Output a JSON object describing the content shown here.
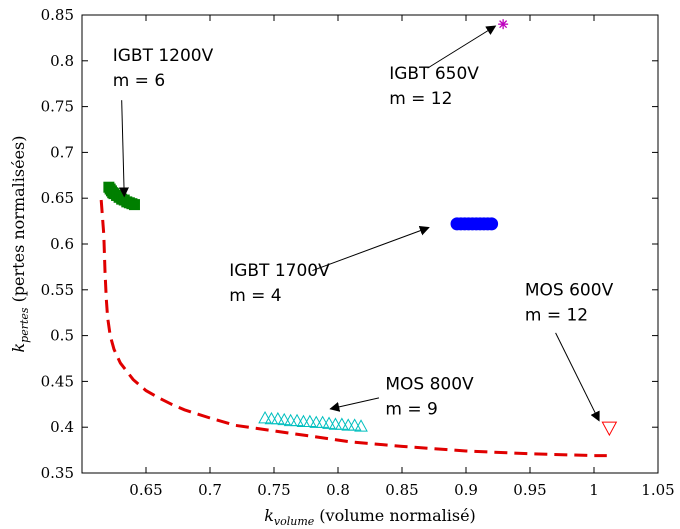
{
  "chart_data": {
    "type": "scatter",
    "title": "",
    "xlim": [
      0.6,
      1.05
    ],
    "ylim": [
      0.35,
      0.85
    ],
    "xticks": [
      0.65,
      0.7,
      0.75,
      0.8,
      0.85,
      0.9,
      0.95,
      1.0,
      1.05
    ],
    "yticks": [
      0.35,
      0.4,
      0.45,
      0.5,
      0.55,
      0.6,
      0.65,
      0.7,
      0.75,
      0.8,
      0.85
    ],
    "xtick_labels": [
      "0.65",
      "0.7",
      "0.75",
      "0.8",
      "0.85",
      "0.9",
      "0.95",
      "1",
      "1.05"
    ],
    "ytick_labels": [
      "0.35",
      "0.4",
      "0.45",
      "0.5",
      "0.55",
      "0.6",
      "0.65",
      "0.7",
      "0.75",
      "0.8",
      "0.85"
    ],
    "xlabel": {
      "symbol": "k",
      "subscript": "volume",
      "text": "(volume normalisé)"
    },
    "ylabel": {
      "symbol": "k",
      "subscript": "pertes",
      "text": "(pertes normalisées)"
    },
    "grid": false,
    "legend": "none",
    "series": [
      {
        "label_lines": [
          "IGBT 1200V",
          "m = 6"
        ],
        "marker": "square",
        "color": "#007f00",
        "x": [
          0.621,
          0.622,
          0.623,
          0.624,
          0.625,
          0.627,
          0.629,
          0.631,
          0.633,
          0.635,
          0.637,
          0.639,
          0.641
        ],
        "y": [
          0.662,
          0.66,
          0.658,
          0.656,
          0.655,
          0.653,
          0.651,
          0.649,
          0.648,
          0.646,
          0.645,
          0.644,
          0.643
        ],
        "label_at": [
          0.624,
          0.8
        ],
        "arrow_from": [
          0.631,
          0.757
        ],
        "arrow_to": [
          0.633,
          0.652
        ]
      },
      {
        "label_lines": [
          "IGBT 650V",
          "m = 12"
        ],
        "marker": "star",
        "color": "#bf00bf",
        "x": [
          0.929
        ],
        "y": [
          0.84
        ],
        "label_at": [
          0.84,
          0.78
        ],
        "arrow_from": [
          0.87,
          0.792
        ],
        "arrow_to": [
          0.923,
          0.838
        ]
      },
      {
        "label_lines": [
          "IGBT 1700V",
          "m = 4"
        ],
        "marker": "circle",
        "color": "#0000ff",
        "x": [
          0.893,
          0.896,
          0.899,
          0.902,
          0.905,
          0.908,
          0.911,
          0.914,
          0.917,
          0.92
        ],
        "y": [
          0.622,
          0.622,
          0.622,
          0.622,
          0.622,
          0.622,
          0.622,
          0.622,
          0.622,
          0.622
        ],
        "label_at": [
          0.715,
          0.565
        ],
        "arrow_from": [
          0.78,
          0.571
        ],
        "arrow_to": [
          0.871,
          0.618
        ]
      },
      {
        "label_lines": [
          "MOS 800V",
          "m = 9"
        ],
        "marker": "triangle-up",
        "color": "#00bfbf",
        "x": [
          0.743,
          0.748,
          0.753,
          0.758,
          0.763,
          0.768,
          0.773,
          0.778,
          0.783,
          0.788,
          0.793,
          0.798,
          0.803,
          0.808,
          0.813,
          0.818
        ],
        "y": [
          0.41,
          0.409,
          0.409,
          0.408,
          0.407,
          0.407,
          0.406,
          0.406,
          0.405,
          0.405,
          0.404,
          0.403,
          0.403,
          0.402,
          0.402,
          0.401
        ],
        "label_at": [
          0.837,
          0.441
        ],
        "arrow_from": [
          0.832,
          0.432
        ],
        "arrow_to": [
          0.794,
          0.42
        ]
      },
      {
        "label_lines": [
          "MOS 600V",
          "m = 12"
        ],
        "marker": "triangle-down",
        "color": "#ff0000",
        "x": [
          1.012
        ],
        "y": [
          0.399
        ],
        "label_at": [
          0.946,
          0.544
        ],
        "arrow_from": [
          0.97,
          0.503
        ],
        "arrow_to": [
          1.004,
          0.407
        ]
      },
      {
        "line_style": "dashed",
        "color": "#e00000",
        "x": [
          0.615,
          0.617,
          0.618,
          0.619,
          0.62,
          0.622,
          0.625,
          0.63,
          0.64,
          0.65,
          0.66,
          0.67,
          0.68,
          0.7,
          0.72,
          0.75,
          0.78,
          0.81,
          0.85,
          0.9,
          0.95,
          1.0,
          1.01
        ],
        "y": [
          0.648,
          0.61,
          0.57,
          0.54,
          0.52,
          0.5,
          0.485,
          0.47,
          0.452,
          0.44,
          0.432,
          0.425,
          0.419,
          0.41,
          0.402,
          0.396,
          0.39,
          0.384,
          0.379,
          0.374,
          0.371,
          0.369,
          0.369
        ]
      }
    ]
  }
}
